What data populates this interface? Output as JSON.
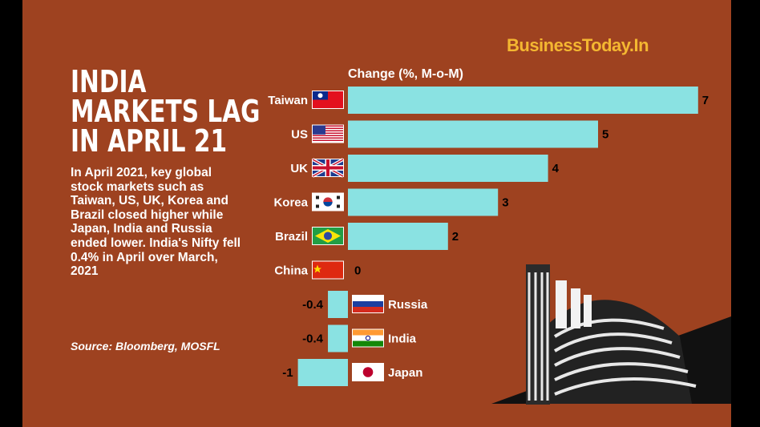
{
  "brand": "BusinessToday.In",
  "headline": [
    "INDIA",
    "MARKETS LAG",
    "IN APRIL 21"
  ],
  "description": "In April 2021, key global stock markets such as Taiwan, US, UK, Korea and Brazil closed higher while Japan, India and Russia ended lower. India's Nifty fell 0.4% in April over March, 2021",
  "source": "Source: Bloomberg, MOSFL",
  "colors": {
    "background": "#9e4220",
    "bar": "#8ae2e2",
    "brand": "#f4b731",
    "text": "#ffffff"
  },
  "chart_data": {
    "type": "bar",
    "orientation": "horizontal",
    "title": "Change (%, M-o-M)",
    "categories": [
      "Taiwan",
      "US",
      "UK",
      "Korea",
      "Brazil",
      "China",
      "Russia",
      "India",
      "Japan"
    ],
    "values": [
      7,
      5,
      4,
      3,
      2,
      0,
      -0.4,
      -0.4,
      -1
    ],
    "value_labels": [
      "7",
      "5",
      "4",
      "3",
      "2",
      "0",
      "-0.4",
      "-0.4",
      "-1"
    ],
    "flags": [
      "taiwan-flag-icon",
      "us-flag-icon",
      "uk-flag-icon",
      "korea-flag-icon",
      "brazil-flag-icon",
      "china-flag-icon",
      "russia-flag-icon",
      "india-flag-icon",
      "japan-flag-icon"
    ],
    "grid": false,
    "legend": "none"
  }
}
